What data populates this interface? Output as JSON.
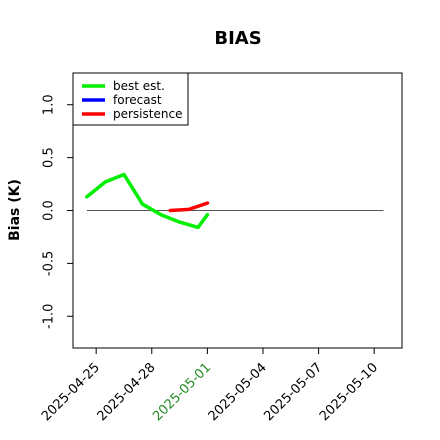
{
  "chart_data": {
    "type": "line",
    "title": "BIAS",
    "xlabel": "",
    "ylabel": "Bias (K)",
    "xlim": [
      "2025-04-23T18:00",
      "2025-05-11T12:00"
    ],
    "ylim": [
      -1.3,
      1.3
    ],
    "yticks": [
      -1.0,
      -0.5,
      0.0,
      0.5,
      1.0
    ],
    "ytick_labels": [
      "-1.0",
      "-0.5",
      "0.0",
      "0.5",
      "1.0"
    ],
    "xticks": [
      "2025-04-25",
      "2025-04-28",
      "2025-05-01",
      "2025-05-04",
      "2025-05-07",
      "2025-05-10"
    ],
    "xtick_colors": [
      "#000000",
      "#000000",
      "#228B22",
      "#000000",
      "#000000",
      "#000000"
    ],
    "reference_line": 0.0,
    "reference_line_color": "#555555",
    "grid": false,
    "legend_position": "top-left",
    "series": [
      {
        "name": "best est.",
        "color": "#00ee00",
        "points": [
          {
            "x": "2025-04-24T12:00",
            "y": 0.13
          },
          {
            "x": "2025-04-25T12:00",
            "y": 0.27
          },
          {
            "x": "2025-04-26T12:00",
            "y": 0.34
          },
          {
            "x": "2025-04-27T12:00",
            "y": 0.06
          },
          {
            "x": "2025-04-28T12:00",
            "y": -0.04
          },
          {
            "x": "2025-04-29T12:00",
            "y": -0.11
          },
          {
            "x": "2025-04-30T12:00",
            "y": -0.16
          },
          {
            "x": "2025-05-01T00:00",
            "y": -0.04
          }
        ]
      },
      {
        "name": "forecast",
        "color": "#0000ff",
        "points": []
      },
      {
        "name": "persistence",
        "color": "#ff0000",
        "points": [
          {
            "x": "2025-04-29T00:00",
            "y": 0.0
          },
          {
            "x": "2025-04-30T00:00",
            "y": 0.01
          },
          {
            "x": "2025-05-01T00:00",
            "y": 0.07
          }
        ]
      }
    ]
  }
}
